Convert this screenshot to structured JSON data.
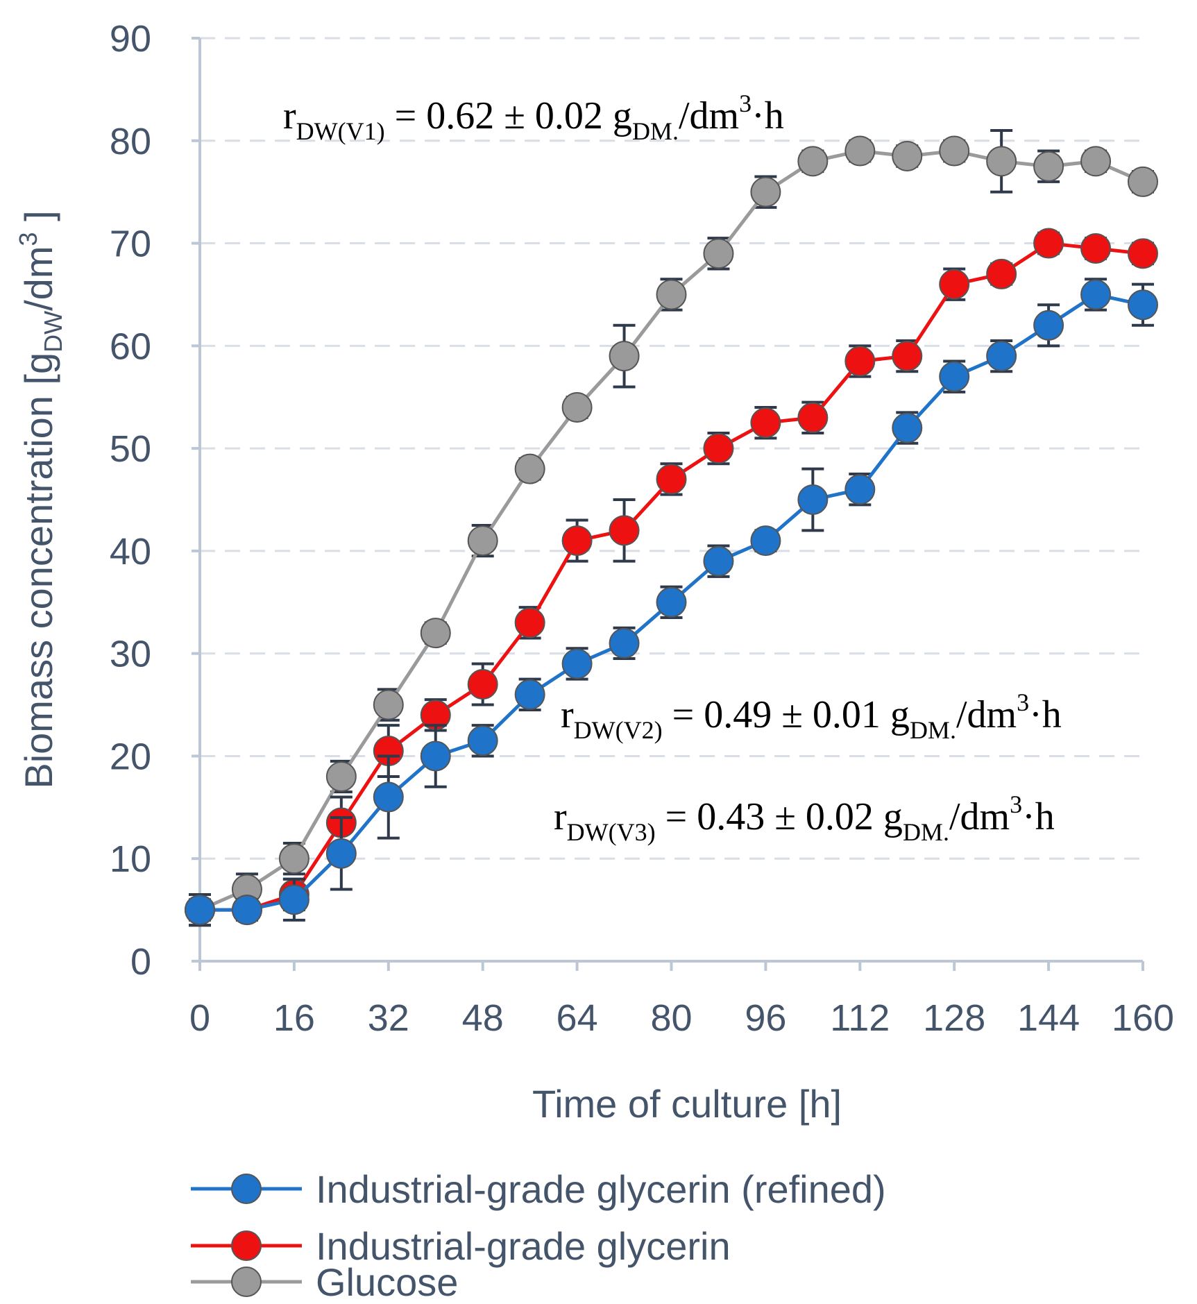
{
  "chart_data": {
    "type": "line",
    "title": "",
    "xlabel": "Time of culture [h]",
    "ylabel": {
      "main": "Biomass concentration [g",
      "sub": "DW",
      "mid": "/dm",
      "sup": "3",
      "end": " ]"
    },
    "xlim": [
      0,
      160
    ],
    "ylim": [
      0,
      90
    ],
    "xticks": [
      "0",
      "16",
      "32",
      "48",
      "64",
      "80",
      "96",
      "112",
      "128",
      "144",
      "160"
    ],
    "yticks": [
      "0",
      "10",
      "20",
      "30",
      "40",
      "50",
      "60",
      "70",
      "80",
      "90"
    ],
    "grid": "horizontal dashed",
    "legend_position": "bottom",
    "x": [
      0,
      8,
      16,
      24,
      32,
      40,
      48,
      56,
      64,
      72,
      80,
      88,
      96,
      104,
      112,
      120,
      128,
      136,
      144,
      152,
      160
    ],
    "series": [
      {
        "name": "Industrial-grade glycerin (refined)",
        "color": "#1f73c9",
        "values": [
          5,
          5,
          6,
          10.5,
          16,
          20,
          21.5,
          26,
          29,
          31,
          35,
          39,
          41,
          45,
          46,
          52,
          57,
          59,
          62,
          65,
          64
        ],
        "errors": [
          1.5,
          1,
          2,
          3.5,
          4,
          3,
          1.5,
          1.5,
          1.5,
          1.5,
          1.5,
          1.5,
          1,
          3,
          1.5,
          1.5,
          1.5,
          1.5,
          2,
          1.5,
          2
        ]
      },
      {
        "name": "Industrial-grade glycerin",
        "color": "#ee1111",
        "values": [
          5,
          5,
          6.5,
          13.5,
          20.5,
          24,
          27,
          33,
          41,
          42,
          47,
          50,
          52.5,
          53,
          58.5,
          59,
          66,
          67,
          70,
          69.5,
          69
        ],
        "errors": [
          1,
          1,
          1.5,
          2.5,
          2.5,
          1.5,
          2,
          1.5,
          2,
          3,
          1.5,
          1.5,
          1.5,
          1.5,
          1.5,
          1.5,
          1.5,
          1,
          1,
          1,
          1
        ]
      },
      {
        "name": "Glucose",
        "color": "#9a9a9a",
        "values": [
          5,
          7,
          10,
          18,
          25,
          32,
          41,
          48,
          54,
          59,
          65,
          69,
          75,
          78,
          79,
          78.5,
          79,
          78,
          77.5,
          78,
          76
        ],
        "errors": [
          1.5,
          1.5,
          1.5,
          1.5,
          1.5,
          1,
          1.5,
          1,
          1,
          3,
          1.5,
          1.5,
          1.5,
          1,
          1,
          1,
          1,
          3,
          1.5,
          1,
          1
        ]
      }
    ],
    "annotations": [
      {
        "r": "r",
        "sub1": "DW(V1)",
        "text": " = 0.62 ± 0.02 g",
        "sub2": "DM.",
        "unit": "/dm",
        "sup": "3",
        "end": "·h"
      },
      {
        "r": "r",
        "sub1": "DW(V2)",
        "text": " = 0.49 ± 0.01 g",
        "sub2": "DM.",
        "unit": "/dm",
        "sup": "3",
        "end": "·h"
      },
      {
        "r": "r",
        "sub1": "DW(V3)",
        "text": " = 0.43 ± 0.02 g",
        "sub2": "DM.",
        "unit": "/dm",
        "sup": "3",
        "end": "·h"
      }
    ]
  }
}
